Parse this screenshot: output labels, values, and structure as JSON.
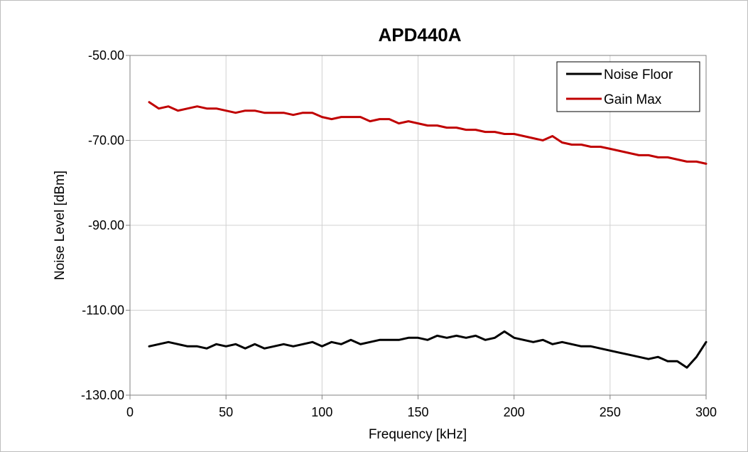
{
  "chart_data": {
    "type": "line",
    "title": "APD440A",
    "xlabel": "Frequency [kHz]",
    "ylabel": "Noise Level  [dBm]",
    "xlim": [
      0,
      300
    ],
    "ylim": [
      -130,
      -50
    ],
    "x_ticks": [
      "0",
      "50",
      "100",
      "150",
      "200",
      "250",
      "300"
    ],
    "y_ticks": [
      "-50.00",
      "-70.00",
      "-90.00",
      "-110.00",
      "-130.00"
    ],
    "grid": true,
    "legend_position": "top-right",
    "series": [
      {
        "name": "Noise Floor",
        "color": "#000000",
        "x": [
          10,
          15,
          20,
          25,
          30,
          35,
          40,
          45,
          50,
          55,
          60,
          65,
          70,
          75,
          80,
          85,
          90,
          95,
          100,
          105,
          110,
          115,
          120,
          125,
          130,
          135,
          140,
          145,
          150,
          155,
          160,
          165,
          170,
          175,
          180,
          185,
          190,
          195,
          200,
          205,
          210,
          215,
          220,
          225,
          230,
          235,
          240,
          245,
          250,
          255,
          260,
          265,
          270,
          275,
          280,
          285,
          290,
          295,
          300
        ],
        "y": [
          -118.5,
          -118,
          -117.5,
          -118,
          -118.5,
          -118.5,
          -119,
          -118,
          -118.5,
          -118,
          -119,
          -118,
          -119,
          -118.5,
          -118,
          -118.5,
          -118,
          -117.5,
          -118.5,
          -117.5,
          -118,
          -117,
          -118,
          -117.5,
          -117,
          -117,
          -117,
          -116.5,
          -116.5,
          -117,
          -116,
          -116.5,
          -116,
          -116.5,
          -116,
          -117,
          -116.5,
          -115,
          -116.5,
          -117,
          -117.5,
          -117,
          -118,
          -117.5,
          -118,
          -118.5,
          -118.5,
          -119,
          -119.5,
          -120,
          -120.5,
          -121,
          -121.5,
          -121,
          -122,
          -122,
          -123.5,
          -121,
          -117.5
        ]
      },
      {
        "name": "Gain Max",
        "color": "#c00000",
        "x": [
          10,
          15,
          20,
          25,
          30,
          35,
          40,
          45,
          50,
          55,
          60,
          65,
          70,
          75,
          80,
          85,
          90,
          95,
          100,
          105,
          110,
          115,
          120,
          125,
          130,
          135,
          140,
          145,
          150,
          155,
          160,
          165,
          170,
          175,
          180,
          185,
          190,
          195,
          200,
          205,
          210,
          215,
          220,
          225,
          230,
          235,
          240,
          245,
          250,
          255,
          260,
          265,
          270,
          275,
          280,
          285,
          290,
          295,
          300
        ],
        "y": [
          -61,
          -62.5,
          -62,
          -63,
          -62.5,
          -62,
          -62.5,
          -62.5,
          -63,
          -63.5,
          -63,
          -63,
          -63.5,
          -63.5,
          -63.5,
          -64,
          -63.5,
          -63.5,
          -64.5,
          -65,
          -64.5,
          -64.5,
          -64.5,
          -65.5,
          -65,
          -65,
          -66,
          -65.5,
          -66,
          -66.5,
          -66.5,
          -67,
          -67,
          -67.5,
          -67.5,
          -68,
          -68,
          -68.5,
          -68.5,
          -69,
          -69.5,
          -70,
          -69,
          -70.5,
          -71,
          -71,
          -71.5,
          -71.5,
          -72,
          -72.5,
          -73,
          -73.5,
          -73.5,
          -74,
          -74,
          -74.5,
          -75,
          -75,
          -75.5
        ]
      }
    ]
  }
}
